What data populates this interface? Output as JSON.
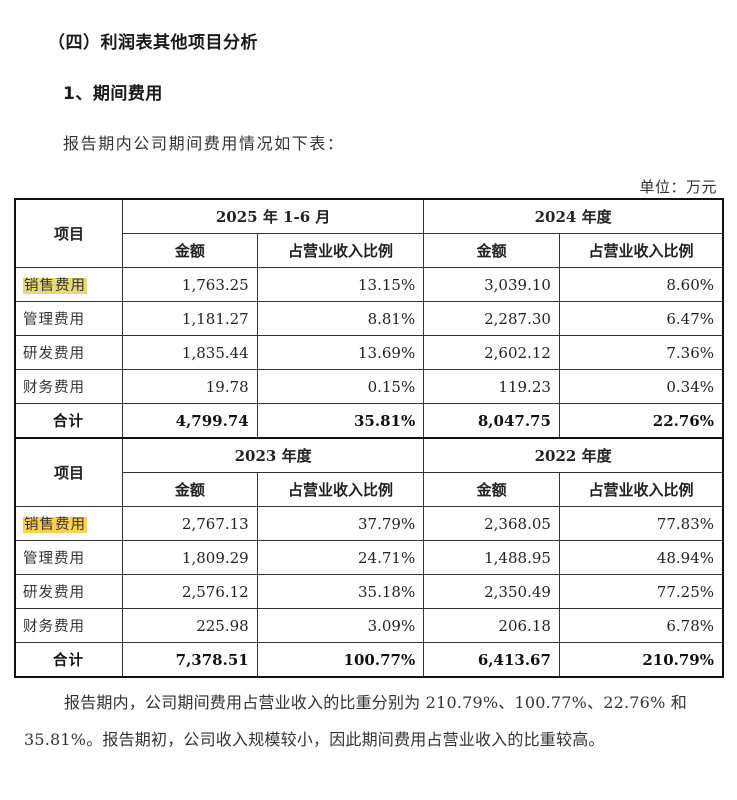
{
  "section_title": "（四）利润表其他项目分析",
  "subsection_title": "1、期间费用",
  "intro_text": "报告期内公司期间费用情况如下表：",
  "unit_label": "单位：万元",
  "table": {
    "item_header": "项目",
    "amount_header": "金额",
    "ratio_header": "占营业收入比例",
    "blocks": [
      {
        "periods": [
          "2025 年 1-6 月",
          "2024 年度"
        ],
        "rows": [
          {
            "item": "销售费用",
            "highlight": true,
            "values": [
              "1,763.25",
              "13.15%",
              "3,039.10",
              "8.60%"
            ]
          },
          {
            "item": "管理费用",
            "highlight": false,
            "values": [
              "1,181.27",
              "8.81%",
              "2,287.30",
              "6.47%"
            ]
          },
          {
            "item": "研发费用",
            "highlight": false,
            "values": [
              "1,835.44",
              "13.69%",
              "2,602.12",
              "7.36%"
            ]
          },
          {
            "item": "财务费用",
            "highlight": false,
            "values": [
              "19.78",
              "0.15%",
              "119.23",
              "0.34%"
            ]
          }
        ],
        "total": {
          "item": "合计",
          "values": [
            "4,799.74",
            "35.81%",
            "8,047.75",
            "22.76%"
          ]
        }
      },
      {
        "periods": [
          "2023 年度",
          "2022 年度"
        ],
        "rows": [
          {
            "item": "销售费用",
            "highlight": true,
            "values": [
              "2,767.13",
              "37.79%",
              "2,368.05",
              "77.83%"
            ]
          },
          {
            "item": "管理费用",
            "highlight": false,
            "values": [
              "1,809.29",
              "24.71%",
              "1,488.95",
              "48.94%"
            ]
          },
          {
            "item": "研发费用",
            "highlight": false,
            "values": [
              "2,576.12",
              "35.18%",
              "2,350.49",
              "77.25%"
            ]
          },
          {
            "item": "财务费用",
            "highlight": false,
            "values": [
              "225.98",
              "3.09%",
              "206.18",
              "6.78%"
            ]
          }
        ],
        "total": {
          "item": "合计",
          "values": [
            "7,378.51",
            "100.77%",
            "6,413.67",
            "210.79%"
          ]
        }
      }
    ]
  },
  "conclusion_text": "报告期内，公司期间费用占营业收入的比重分别为 210.79%、100.77%、22.76% 和 35.81%。报告期初，公司收入规模较小，因此期间费用占营业收入的比重较高。",
  "colors": {
    "highlight_1": "#e8d777",
    "highlight_2": "#fbd24a",
    "border": "#111111"
  }
}
